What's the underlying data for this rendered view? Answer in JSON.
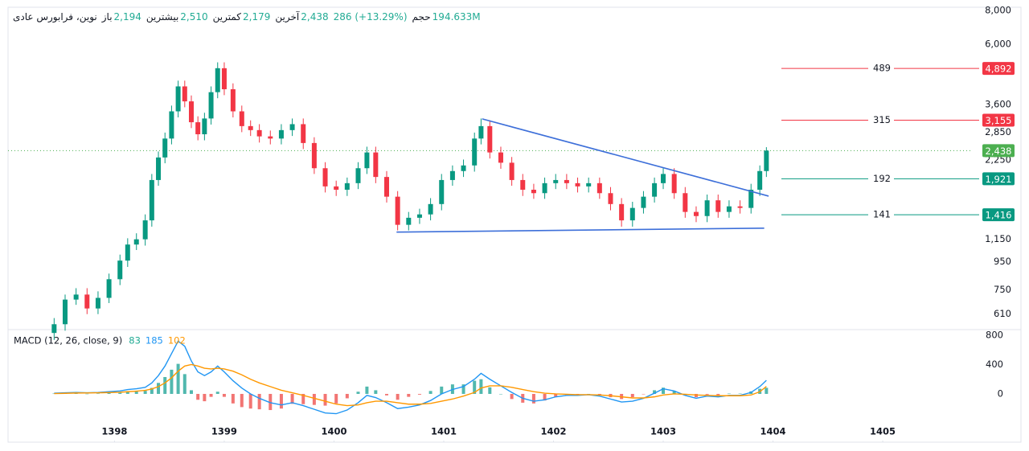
{
  "header": {
    "symbol": "نوین، فرابورس عادی",
    "fields": [
      {
        "label": "باز",
        "value": "2,194"
      },
      {
        "label": "بیشترین",
        "value": "2,510"
      },
      {
        "label": "کمترین",
        "value": "2,179"
      },
      {
        "label": "آخرین",
        "value": "2,438"
      }
    ],
    "change": "286 (+13.29%)",
    "volume_label": "حجم",
    "volume": "194.633M"
  },
  "chart_data": [
    {
      "type": "candlestick",
      "log": true,
      "up_color": "#089981",
      "down_color": "#f23645",
      "ylim": [
        535,
        8270
      ],
      "yticks": [
        {
          "value": 8000,
          "label": "8,000"
        },
        {
          "value": 6000,
          "label": "6,000"
        },
        {
          "value": 3600,
          "label": "3,600"
        },
        {
          "value": 2850,
          "label": "2,850"
        },
        {
          "value": 2250,
          "label": "2,250"
        },
        {
          "value": 1150,
          "label": "1,150"
        },
        950,
        750,
        610
      ],
      "xlim": [
        1397.03,
        1405.82
      ],
      "xticks": [
        1398,
        1399,
        1400,
        1401,
        1402,
        1403,
        1404,
        1405
      ],
      "x": [
        1397.45,
        1397.55,
        1397.65,
        1397.75,
        1397.85,
        1397.95,
        1398.05,
        1398.12,
        1398.2,
        1398.28,
        1398.34,
        1398.4,
        1398.46,
        1398.52,
        1398.58,
        1398.64,
        1398.7,
        1398.76,
        1398.82,
        1398.88,
        1398.94,
        1399.0,
        1399.08,
        1399.16,
        1399.24,
        1399.32,
        1399.42,
        1399.52,
        1399.62,
        1399.72,
        1399.82,
        1399.92,
        1400.02,
        1400.12,
        1400.22,
        1400.3,
        1400.38,
        1400.48,
        1400.58,
        1400.68,
        1400.78,
        1400.88,
        1400.98,
        1401.08,
        1401.18,
        1401.28,
        1401.34,
        1401.42,
        1401.52,
        1401.62,
        1401.72,
        1401.82,
        1401.92,
        1402.02,
        1402.12,
        1402.22,
        1402.32,
        1402.42,
        1402.52,
        1402.62,
        1402.72,
        1402.82,
        1402.92,
        1403.0,
        1403.1,
        1403.2,
        1403.3,
        1403.4,
        1403.5,
        1403.6,
        1403.7,
        1403.8,
        1403.88,
        1403.94
      ],
      "open": [
        520,
        560,
        690,
        720,
        640,
        700,
        820,
        960,
        1100,
        1150,
        1350,
        1900,
        2300,
        2700,
        3400,
        4200,
        3700,
        3100,
        2800,
        3200,
        4000,
        4900,
        4100,
        3400,
        3000,
        2900,
        2750,
        2700,
        2900,
        3050,
        2600,
        2100,
        1800,
        1750,
        1850,
        2100,
        2400,
        1950,
        1650,
        1300,
        1380,
        1420,
        1550,
        1900,
        2050,
        2150,
        2700,
        3000,
        2400,
        2200,
        1900,
        1750,
        1700,
        1850,
        1900,
        1850,
        1800,
        1850,
        1700,
        1550,
        1350,
        1500,
        1650,
        1850,
        2000,
        1700,
        1450,
        1400,
        1600,
        1450,
        1520,
        1500,
        1750,
        2050
      ],
      "high": [
        590,
        720,
        760,
        760,
        740,
        860,
        1010,
        1160,
        1210,
        1420,
        2000,
        2420,
        2840,
        3570,
        4410,
        4410,
        3890,
        3260,
        3360,
        4200,
        5150,
        5150,
        4310,
        3570,
        3150,
        3050,
        2890,
        3050,
        3200,
        3200,
        2730,
        2210,
        1890,
        1940,
        2210,
        2520,
        2520,
        2050,
        1730,
        1450,
        1490,
        1630,
        2000,
        2150,
        2260,
        2840,
        3200,
        3150,
        2520,
        2310,
        2000,
        1840,
        1940,
        2000,
        2000,
        1940,
        1940,
        1940,
        1790,
        1630,
        1580,
        1730,
        1940,
        2100,
        2100,
        1790,
        1520,
        1680,
        1680,
        1600,
        1600,
        1840,
        2150,
        2510
      ],
      "low": [
        490,
        530,
        660,
        610,
        610,
        670,
        780,
        910,
        1050,
        1090,
        1280,
        1810,
        2190,
        2570,
        3230,
        3520,
        2950,
        2660,
        2660,
        3040,
        3800,
        3900,
        3230,
        2850,
        2760,
        2610,
        2570,
        2570,
        2760,
        2470,
        2000,
        1710,
        1660,
        1660,
        1760,
        2000,
        1850,
        1570,
        1240,
        1240,
        1310,
        1350,
        1470,
        1810,
        1950,
        2040,
        2570,
        2280,
        2090,
        1810,
        1660,
        1620,
        1620,
        1760,
        1760,
        1710,
        1710,
        1620,
        1470,
        1280,
        1280,
        1430,
        1570,
        1760,
        1620,
        1380,
        1330,
        1330,
        1380,
        1380,
        1430,
        1430,
        1660,
        1950
      ],
      "close": [
        560,
        690,
        720,
        640,
        700,
        820,
        960,
        1100,
        1150,
        1350,
        1900,
        2300,
        2700,
        3400,
        4200,
        3700,
        3100,
        2800,
        3200,
        4000,
        4900,
        4100,
        3400,
        3000,
        2900,
        2750,
        2700,
        2900,
        3050,
        2600,
        2100,
        1800,
        1750,
        1850,
        2100,
        2400,
        1950,
        1650,
        1300,
        1380,
        1420,
        1550,
        1900,
        2050,
        2150,
        2700,
        3000,
        2400,
        2200,
        1900,
        1750,
        1700,
        1850,
        1900,
        1850,
        1800,
        1850,
        1700,
        1550,
        1350,
        1500,
        1650,
        1850,
        2000,
        1700,
        1450,
        1400,
        1600,
        1450,
        1520,
        1500,
        1750,
        2050,
        2438
      ],
      "last_price": 2438,
      "last_price_label": "2,438",
      "last_price_color": "#4caf50",
      "levels": [
        {
          "label": 489,
          "price": 4892,
          "price_label": "4,892",
          "color": "#f23645"
        },
        {
          "label": 315,
          "price": 3155,
          "price_label": "3,155",
          "color": "#f23645"
        },
        {
          "label": 192,
          "price": 1921,
          "price_label": "1,921",
          "color": "#089981"
        },
        {
          "label": 141,
          "price": 1416,
          "price_label": "1,416",
          "color": "#089981"
        }
      ],
      "trendlines": [
        {
          "x": [
            1400.57,
            1403.92
          ],
          "y": [
            1222,
            1264
          ]
        },
        {
          "x": [
            1401.35,
            1403.96
          ],
          "y": [
            3190,
            1658
          ]
        }
      ],
      "trendline_color": "#3d6fd9"
    },
    {
      "type": "macd",
      "title": "MACD (12, 26, close, 9)",
      "ylim": [
        -384,
        877
      ],
      "yticks": [
        800,
        400,
        0
      ],
      "histogram": {
        "up_color": "#26a69a",
        "down_color": "#ef5350",
        "legend_color": "#22ab94",
        "values": [
          5,
          7,
          8,
          2,
          5,
          12,
          18,
          30,
          32,
          42,
          82,
          150,
          230,
          330,
          410,
          270,
          50,
          -80,
          -100,
          -40,
          30,
          -40,
          -130,
          -180,
          -200,
          -210,
          -220,
          -200,
          -135,
          -140,
          -150,
          -160,
          -130,
          -60,
          30,
          100,
          50,
          -20,
          -80,
          -40,
          -10,
          40,
          100,
          130,
          130,
          180,
          200,
          90,
          0,
          -70,
          -120,
          -130,
          -90,
          -40,
          -15,
          -10,
          0,
          -15,
          -45,
          -70,
          -45,
          -5,
          50,
          85,
          40,
          -15,
          -45,
          -10,
          -15,
          5,
          5,
          35,
          70,
          83
        ]
      },
      "series": [
        {
          "color": "#2196f3",
          "values": [
            10,
            15,
            20,
            15,
            20,
            30,
            40,
            60,
            70,
            90,
            150,
            250,
            380,
            550,
            720,
            650,
            450,
            300,
            250,
            300,
            380,
            300,
            180,
            80,
            0,
            -60,
            -120,
            -150,
            -120,
            -160,
            -210,
            -260,
            -270,
            -220,
            -120,
            -20,
            -50,
            -120,
            -200,
            -180,
            -150,
            -90,
            0,
            60,
            100,
            200,
            280,
            200,
            110,
            20,
            -60,
            -100,
            -80,
            -40,
            -20,
            -20,
            -10,
            -30,
            -70,
            -110,
            -100,
            -60,
            10,
            70,
            40,
            -20,
            -60,
            -30,
            -40,
            -20,
            -20,
            20,
            100,
            185
          ]
        },
        {
          "color": "#ff9800",
          "values": [
            5,
            8,
            12,
            13,
            15,
            18,
            22,
            30,
            38,
            48,
            68,
            100,
            150,
            220,
            310,
            380,
            400,
            380,
            350,
            340,
            350,
            340,
            310,
            260,
            200,
            150,
            100,
            50,
            15,
            -20,
            -60,
            -100,
            -140,
            -160,
            -150,
            -120,
            -100,
            -100,
            -120,
            -140,
            -140,
            -130,
            -100,
            -70,
            -30,
            20,
            80,
            110,
            110,
            90,
            60,
            30,
            10,
            0,
            -5,
            -10,
            -10,
            -15,
            -25,
            -40,
            -55,
            -55,
            -40,
            -15,
            0,
            -5,
            -15,
            -20,
            -25,
            -25,
            -25,
            -15,
            30,
            102
          ]
        }
      ]
    }
  ]
}
